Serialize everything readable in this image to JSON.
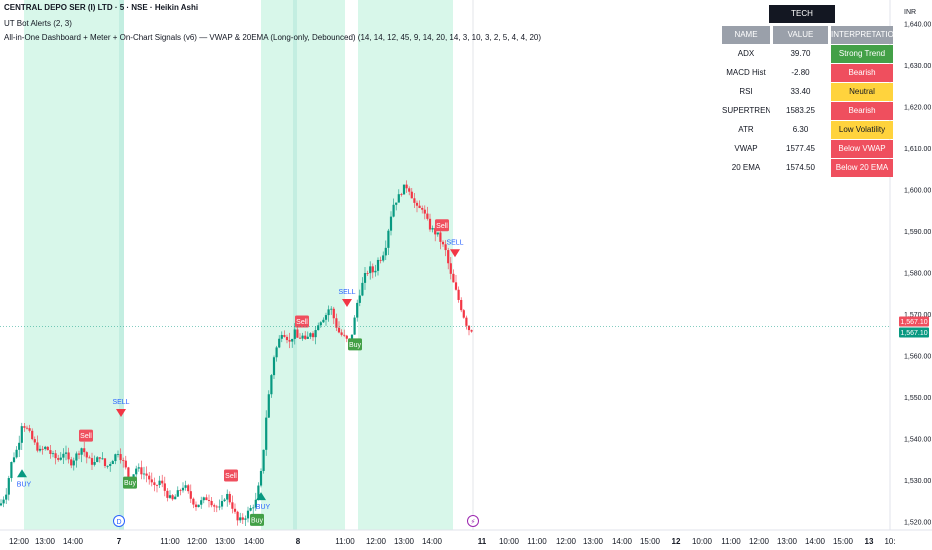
{
  "header": {
    "title": "CENTRAL DEPO SER (I) LTD · 5 · NSE · Heikin Ashi",
    "indicator1": "UT Bot Alerts (2, 3)",
    "indicator2": "All-in-One Dashboard + Meter + On-Chart Signals (v6) — VWAP & 20EMA (Long-only, Debounced) (14, 14, 12, 45, 9, 14, 20, 14, 3, 10, 3, 2, 5, 4, 4, 20)"
  },
  "currency": "INR",
  "tech_table": {
    "caption": "TECH INDICATORS",
    "columns": [
      "NAME",
      "VALUE",
      "INTERPRETATION"
    ],
    "rows": [
      {
        "name": "ADX",
        "value": "39.70",
        "interpretation": "Strong Trend",
        "color": "#43a047"
      },
      {
        "name": "MACD Hist",
        "value": "-2.80",
        "interpretation": "Bearish",
        "color": "#ef4f5e"
      },
      {
        "name": "RSI",
        "value": "33.40",
        "interpretation": "Neutral",
        "color": "#ffd33d"
      },
      {
        "name": "SUPERTREND",
        "value": "1583.25",
        "interpretation": "Bearish",
        "color": "#ef4f5e"
      },
      {
        "name": "ATR",
        "value": "6.30",
        "interpretation": "Low Volatility",
        "color": "#ffd33d"
      },
      {
        "name": "VWAP",
        "value": "1577.45",
        "interpretation": "Below VWAP",
        "color": "#ef4f5e"
      },
      {
        "name": "20 EMA",
        "value": "1574.50",
        "interpretation": "Below 20 EMA",
        "color": "#ef4f5e"
      }
    ]
  },
  "chart_data": {
    "type": "candlestick",
    "chart_style": "Heikin Ashi",
    "timeframe": "5",
    "y_ticks": [
      "1,520.00",
      "1,530.00",
      "1,540.00",
      "1,550.00",
      "1,560.00",
      "1,570.00",
      "1,580.00",
      "1,590.00",
      "1,600.00",
      "1,610.00",
      "1,620.00",
      "1,630.00",
      "1,640.00"
    ],
    "ylim": [
      1518,
      1643
    ],
    "x_ticks": [
      "12:00",
      "13:00",
      "14:00",
      "7",
      "11:00",
      "12:00",
      "13:00",
      "14:00",
      "8",
      "11:00",
      "12:00",
      "13:00",
      "14:00",
      "11",
      "10:00",
      "11:00",
      "12:00",
      "13:00",
      "14:00",
      "15:00",
      "12",
      "10:00",
      "11:00",
      "12:00",
      "13:00",
      "14:00",
      "15:00",
      "13",
      "10:"
    ],
    "last_price": "1,567.10",
    "last_price_labels": [
      {
        "text": "1,567.10",
        "color": "#ef4f5e"
      },
      {
        "text": "1,567.10",
        "color": "#089981"
      }
    ],
    "price_path": [
      [
        0,
        1524
      ],
      [
        6,
        1527
      ],
      [
        12,
        1535
      ],
      [
        18,
        1538
      ],
      [
        22,
        1544
      ],
      [
        28,
        1542
      ],
      [
        34,
        1539
      ],
      [
        40,
        1537
      ],
      [
        46,
        1538
      ],
      [
        52,
        1536
      ],
      [
        58,
        1535
      ],
      [
        64,
        1537
      ],
      [
        70,
        1534
      ],
      [
        76,
        1536
      ],
      [
        82,
        1538
      ],
      [
        88,
        1535
      ],
      [
        94,
        1534
      ],
      [
        100,
        1536
      ],
      [
        106,
        1533
      ],
      [
        112,
        1535
      ],
      [
        118,
        1537
      ],
      [
        124,
        1534
      ],
      [
        130,
        1530
      ],
      [
        136,
        1533
      ],
      [
        142,
        1532
      ],
      [
        148,
        1531
      ],
      [
        154,
        1528
      ],
      [
        160,
        1530
      ],
      [
        166,
        1527
      ],
      [
        172,
        1525
      ],
      [
        178,
        1527
      ],
      [
        184,
        1529
      ],
      [
        190,
        1526
      ],
      [
        196,
        1524
      ],
      [
        202,
        1525
      ],
      [
        208,
        1526
      ],
      [
        214,
        1524
      ],
      [
        220,
        1523
      ],
      [
        226,
        1527
      ],
      [
        232,
        1524
      ],
      [
        238,
        1520
      ],
      [
        244,
        1521
      ],
      [
        250,
        1523
      ],
      [
        256,
        1525
      ],
      [
        262,
        1533
      ],
      [
        266,
        1545
      ],
      [
        270,
        1553
      ],
      [
        274,
        1560
      ],
      [
        278,
        1563
      ],
      [
        282,
        1566
      ],
      [
        286,
        1565
      ],
      [
        290,
        1563
      ],
      [
        294,
        1566
      ],
      [
        298,
        1564
      ],
      [
        302,
        1565
      ],
      [
        306,
        1563
      ],
      [
        310,
        1566
      ],
      [
        314,
        1565
      ],
      [
        318,
        1568
      ],
      [
        322,
        1569
      ],
      [
        326,
        1570
      ],
      [
        330,
        1572
      ],
      [
        334,
        1569
      ],
      [
        338,
        1566
      ],
      [
        342,
        1565
      ],
      [
        346,
        1564
      ],
      [
        350,
        1563
      ],
      [
        354,
        1568
      ],
      [
        358,
        1574
      ],
      [
        362,
        1577
      ],
      [
        366,
        1580
      ],
      [
        370,
        1581
      ],
      [
        374,
        1580
      ],
      [
        378,
        1583
      ],
      [
        382,
        1584
      ],
      [
        386,
        1587
      ],
      [
        390,
        1593
      ],
      [
        394,
        1597
      ],
      [
        398,
        1598
      ],
      [
        402,
        1600
      ],
      [
        406,
        1601
      ],
      [
        410,
        1600
      ],
      [
        414,
        1597
      ],
      [
        418,
        1595
      ],
      [
        422,
        1596
      ],
      [
        426,
        1593
      ],
      [
        430,
        1591
      ],
      [
        434,
        1590
      ],
      [
        438,
        1589
      ],
      [
        442,
        1587
      ],
      [
        446,
        1585
      ],
      [
        450,
        1580
      ],
      [
        454,
        1577
      ],
      [
        458,
        1574
      ],
      [
        462,
        1571
      ],
      [
        466,
        1568
      ],
      [
        470,
        1566
      ],
      [
        474,
        1567
      ]
    ],
    "shaded_sessions": [
      [
        24,
        119
      ],
      [
        119,
        124
      ],
      [
        261,
        293
      ],
      [
        293,
        297
      ],
      [
        297,
        345
      ],
      [
        358,
        453
      ]
    ],
    "signals": [
      {
        "type": "Sell",
        "x": 86,
        "price": 1540.8
      },
      {
        "type": "SELL",
        "x": 121,
        "price": 1546.5
      },
      {
        "type": "BUY",
        "x": 22,
        "price": 1531.5
      },
      {
        "type": "Buy",
        "x": 130,
        "price": 1529.5
      },
      {
        "type": "Sell",
        "x": 231,
        "price": 1531.2
      },
      {
        "type": "BUY",
        "x": 261,
        "price": 1526.0
      },
      {
        "type": "Buy",
        "x": 257,
        "price": 1520.5
      },
      {
        "type": "Sell",
        "x": 302,
        "price": 1568.3
      },
      {
        "type": "SELL",
        "x": 347,
        "price": 1573.0
      },
      {
        "type": "Buy",
        "x": 355,
        "price": 1562.8
      },
      {
        "type": "Sell",
        "x": 442,
        "price": 1591.5
      },
      {
        "type": "SELL",
        "x": 455,
        "price": 1585.0
      }
    ],
    "dividend_marker": "D",
    "earnings_marker": "⚡"
  }
}
